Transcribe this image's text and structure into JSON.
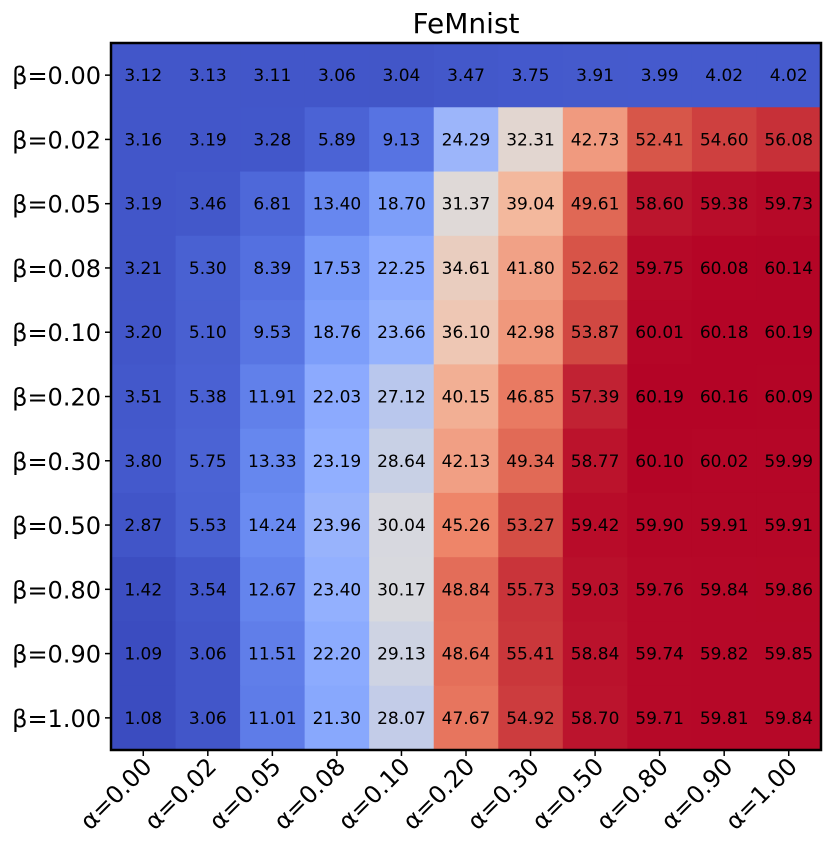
{
  "chart_data": {
    "type": "heatmap",
    "title": "FeMnist",
    "xlabel": "",
    "ylabel": "",
    "x_categories": [
      "α=0.00",
      "α=0.02",
      "α=0.05",
      "α=0.08",
      "α=0.10",
      "α=0.20",
      "α=0.30",
      "α=0.50",
      "α=0.80",
      "α=0.90",
      "α=1.00"
    ],
    "y_categories": [
      "β=0.00",
      "β=0.02",
      "β=0.05",
      "β=0.08",
      "β=0.10",
      "β=0.20",
      "β=0.30",
      "β=0.50",
      "β=0.80",
      "β=0.90",
      "β=1.00"
    ],
    "values": [
      [
        "3.12",
        "3.13",
        "3.11",
        "3.06",
        "3.04",
        "3.47",
        "3.75",
        "3.91",
        "3.99",
        "4.02",
        "4.02"
      ],
      [
        "3.16",
        "3.19",
        "3.28",
        "5.89",
        "9.13",
        "24.29",
        "32.31",
        "42.73",
        "52.41",
        "54.60",
        "56.08"
      ],
      [
        "3.19",
        "3.46",
        "6.81",
        "13.40",
        "18.70",
        "31.37",
        "39.04",
        "49.61",
        "58.60",
        "59.38",
        "59.73"
      ],
      [
        "3.21",
        "5.30",
        "8.39",
        "17.53",
        "22.25",
        "34.61",
        "41.80",
        "52.62",
        "59.75",
        "60.08",
        "60.14"
      ],
      [
        "3.20",
        "5.10",
        "9.53",
        "18.76",
        "23.66",
        "36.10",
        "42.98",
        "53.87",
        "60.01",
        "60.18",
        "60.19"
      ],
      [
        "3.51",
        "5.38",
        "11.91",
        "22.03",
        "27.12",
        "40.15",
        "46.85",
        "57.39",
        "60.19",
        "60.16",
        "60.09"
      ],
      [
        "3.80",
        "5.75",
        "13.33",
        "23.19",
        "28.64",
        "42.13",
        "49.34",
        "58.77",
        "60.10",
        "60.02",
        "59.99"
      ],
      [
        "2.87",
        "5.53",
        "14.24",
        "23.96",
        "30.04",
        "45.26",
        "53.27",
        "59.42",
        "59.90",
        "59.91",
        "59.91"
      ],
      [
        "1.42",
        "3.54",
        "12.67",
        "23.40",
        "30.17",
        "48.84",
        "55.73",
        "59.03",
        "59.76",
        "59.84",
        "59.86"
      ],
      [
        "1.09",
        "3.06",
        "11.51",
        "22.20",
        "29.13",
        "48.64",
        "55.41",
        "58.84",
        "59.74",
        "59.82",
        "59.85"
      ],
      [
        "1.08",
        "3.06",
        "11.01",
        "21.30",
        "28.07",
        "47.67",
        "54.92",
        "58.70",
        "59.71",
        "59.81",
        "59.84"
      ]
    ],
    "colormap": "coolwarm",
    "value_range": [
      1.08,
      60.19
    ],
    "grid": false
  }
}
